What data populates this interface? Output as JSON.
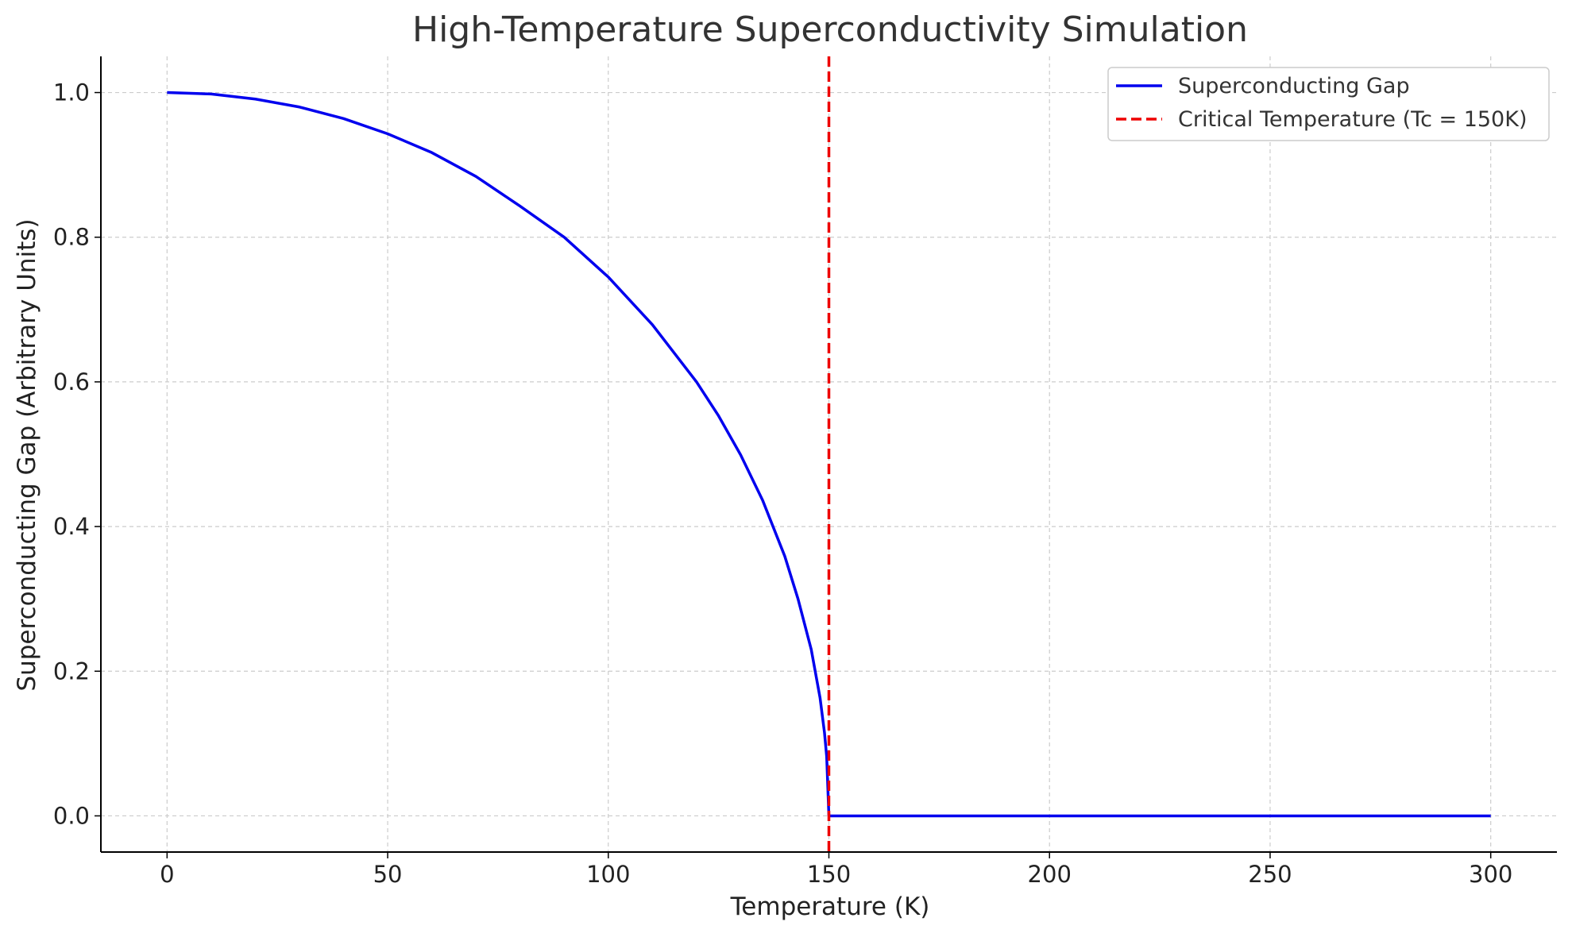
{
  "chart_data": {
    "type": "line",
    "title": "High-Temperature Superconductivity Simulation",
    "xlabel": "Temperature (K)",
    "ylabel": "Superconducting Gap (Arbitrary Units)",
    "xlim": [
      -15,
      315
    ],
    "ylim": [
      -0.05,
      1.05
    ],
    "xticks": [
      0,
      50,
      100,
      150,
      200,
      250,
      300
    ],
    "xtick_labels": [
      "0",
      "50",
      "100",
      "150",
      "200",
      "250",
      "300"
    ],
    "yticks": [
      0.0,
      0.2,
      0.4,
      0.6,
      0.8,
      1.0
    ],
    "ytick_labels": [
      "0.0",
      "0.2",
      "0.4",
      "0.6",
      "0.8",
      "1.0"
    ],
    "grid": true,
    "legend_position": "top-right",
    "series": [
      {
        "name": "Superconducting Gap",
        "color": "#0000ee",
        "style": "solid",
        "x": [
          0,
          10,
          20,
          30,
          40,
          50,
          60,
          70,
          80,
          90,
          100,
          110,
          120,
          125,
          130,
          135,
          140,
          143,
          146,
          148,
          149,
          149.5,
          150,
          160,
          170,
          180,
          190,
          200,
          210,
          220,
          230,
          240,
          250,
          260,
          270,
          280,
          290,
          300
        ],
        "y": [
          1.0,
          0.998,
          0.991,
          0.98,
          0.964,
          0.943,
          0.917,
          0.884,
          0.843,
          0.8,
          0.745,
          0.679,
          0.6,
          0.553,
          0.499,
          0.436,
          0.359,
          0.3,
          0.23,
          0.163,
          0.115,
          0.082,
          0.0,
          0.0,
          0.0,
          0.0,
          0.0,
          0.0,
          0.0,
          0.0,
          0.0,
          0.0,
          0.0,
          0.0,
          0.0,
          0.0,
          0.0,
          0.0
        ]
      },
      {
        "name": "Critical Temperature (Tc = 150K)",
        "color": "#ee0000",
        "style": "dashed",
        "vline_x": 150
      }
    ]
  }
}
